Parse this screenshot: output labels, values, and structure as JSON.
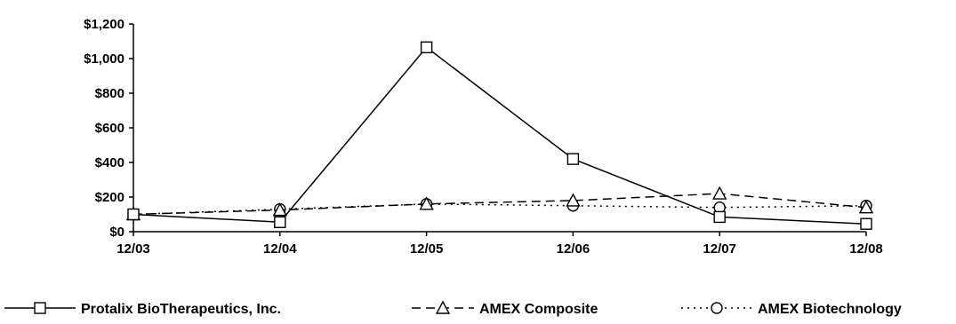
{
  "chart_data": {
    "type": "line",
    "categories": [
      "12/03",
      "12/04",
      "12/05",
      "12/06",
      "12/07",
      "12/08"
    ],
    "ylim": [
      0,
      1200
    ],
    "yticks": [
      0,
      200,
      400,
      600,
      800,
      1000,
      1200
    ],
    "ytick_labels": [
      "$0",
      "$200",
      "$400",
      "$600",
      "$800",
      "$1,000",
      "$1,200"
    ],
    "grid": false,
    "legend_position": "bottom",
    "series": [
      {
        "name": "Protalix BioTherapeutics, Inc.",
        "values": [
          100,
          55,
          1065,
          420,
          85,
          45
        ],
        "line_style": "solid",
        "marker": "square"
      },
      {
        "name": "AMEX Composite",
        "values": [
          100,
          125,
          160,
          180,
          220,
          140
        ],
        "line_style": "dashed",
        "marker": "triangle"
      },
      {
        "name": "AMEX Biotechnology",
        "values": [
          100,
          130,
          160,
          150,
          140,
          150
        ],
        "line_style": "dotted",
        "marker": "circle"
      }
    ]
  }
}
